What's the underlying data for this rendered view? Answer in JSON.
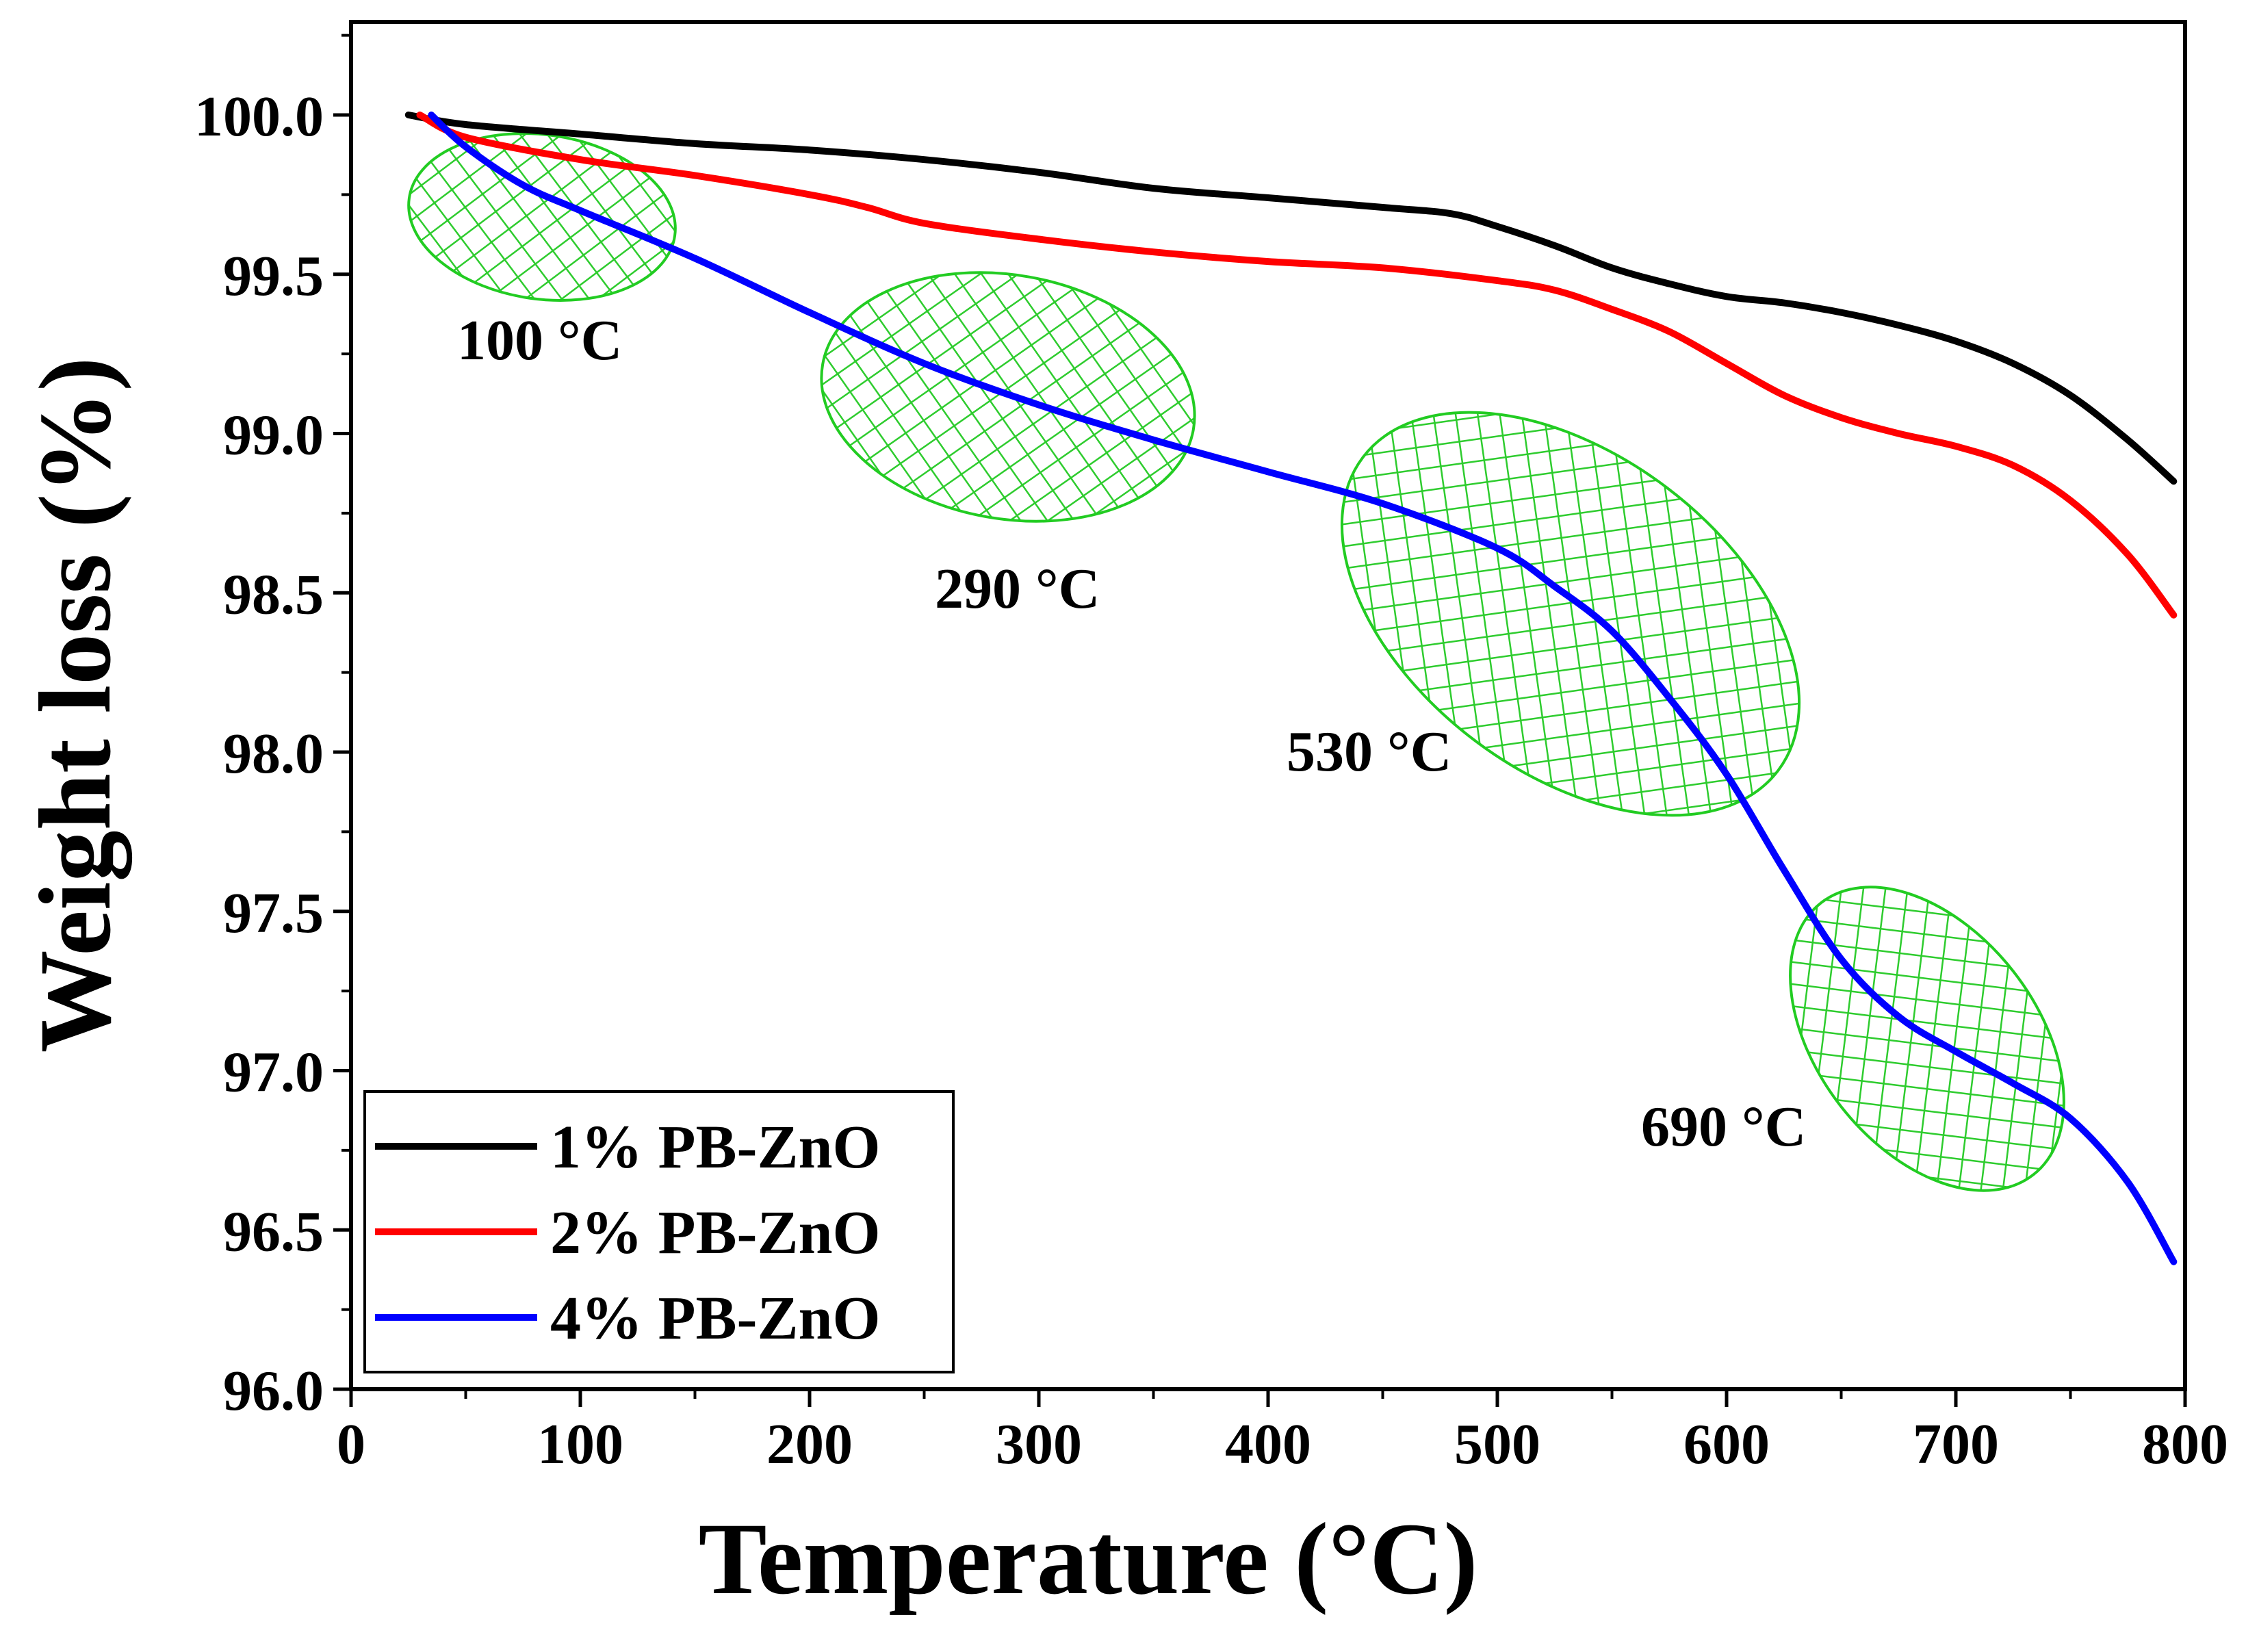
{
  "chart_data": {
    "type": "line",
    "title": "",
    "xlabel": "Temperature (°C)",
    "ylabel": "Weight loss (%)",
    "xlim": [
      0,
      800
    ],
    "ylim": [
      96.0,
      100.3
    ],
    "xticks": [
      0,
      100,
      200,
      300,
      400,
      500,
      600,
      700,
      800
    ],
    "xtick_labels": [
      "0",
      "100",
      "200",
      "300",
      "400",
      "500",
      "600",
      "700",
      "800"
    ],
    "yticks": [
      96.0,
      96.5,
      97.0,
      97.5,
      98.0,
      98.5,
      99.0,
      99.5,
      100.0
    ],
    "ytick_labels": [
      "96.0",
      "96.5",
      "97.0",
      "97.5",
      "98.0",
      "98.5",
      "99.0",
      "99.5",
      "100.0"
    ],
    "grid": false,
    "legend_position": "bottom-left",
    "series": [
      {
        "name": "1% PB-ZnO",
        "color": "#000000",
        "x": [
          25,
          50,
          100,
          150,
          200,
          250,
          300,
          350,
          400,
          450,
          480,
          500,
          525,
          550,
          575,
          600,
          625,
          650,
          675,
          700,
          725,
          750,
          775,
          795
        ],
        "y": [
          100.0,
          99.97,
          99.94,
          99.91,
          99.89,
          99.86,
          99.82,
          99.77,
          99.74,
          99.71,
          99.69,
          99.65,
          99.59,
          99.52,
          99.47,
          99.43,
          99.41,
          99.38,
          99.34,
          99.29,
          99.22,
          99.12,
          98.98,
          98.85
        ]
      },
      {
        "name": "2% PB-ZnO",
        "color": "#ff0000",
        "x": [
          30,
          50,
          100,
          150,
          200,
          225,
          250,
          300,
          350,
          400,
          450,
          500,
          525,
          550,
          575,
          600,
          625,
          650,
          675,
          700,
          725,
          750,
          775,
          795
        ],
        "y": [
          100.0,
          99.93,
          99.86,
          99.81,
          99.75,
          99.71,
          99.66,
          99.61,
          99.57,
          99.54,
          99.52,
          99.48,
          99.45,
          99.39,
          99.32,
          99.22,
          99.12,
          99.05,
          99.0,
          98.96,
          98.9,
          98.79,
          98.62,
          98.43
        ]
      },
      {
        "name": "4% PB-ZnO",
        "color": "#0000ff",
        "x": [
          35,
          50,
          75,
          100,
          150,
          200,
          250,
          300,
          350,
          400,
          450,
          500,
          525,
          550,
          575,
          600,
          625,
          650,
          675,
          700,
          725,
          750,
          775,
          795
        ],
        "y": [
          100.0,
          99.9,
          99.78,
          99.7,
          99.55,
          99.38,
          99.22,
          99.09,
          98.98,
          98.88,
          98.78,
          98.64,
          98.52,
          98.38,
          98.17,
          97.93,
          97.63,
          97.35,
          97.17,
          97.06,
          96.96,
          96.85,
          96.65,
          96.4
        ]
      }
    ],
    "annotations": [
      {
        "label": "100 °C",
        "temperature": 100
      },
      {
        "label": "290 °C",
        "temperature": 290
      },
      {
        "label": "530 °C",
        "temperature": 530
      },
      {
        "label": "690 °C",
        "temperature": 690
      }
    ]
  },
  "colors": {
    "highlight_fill": "#33dd33",
    "highlight_stroke": "#22cc22",
    "axis": "#000000"
  }
}
